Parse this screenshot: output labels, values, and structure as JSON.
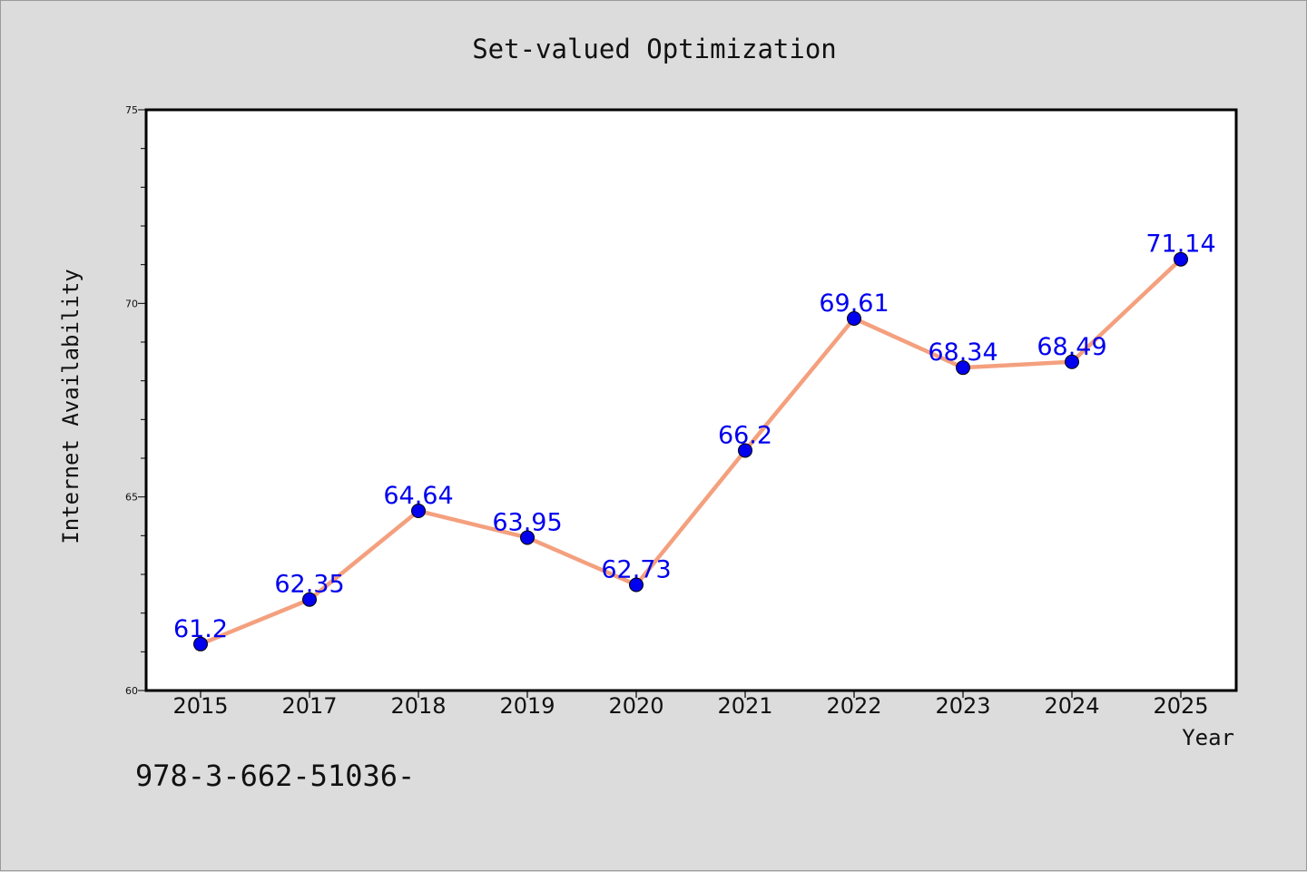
{
  "chart_data": {
    "type": "line",
    "title": "Set-valued Optimization",
    "xlabel": "Year",
    "ylabel": "Internet Availability",
    "categories": [
      "2015",
      "2017",
      "2018",
      "2019",
      "2020",
      "2021",
      "2022",
      "2023",
      "2024",
      "2025"
    ],
    "series": [
      {
        "values": [
          61.2,
          62.35,
          64.64,
          63.95,
          62.73,
          66.2,
          69.61,
          68.34,
          68.49,
          71.14
        ],
        "data_labels": [
          "61.2",
          "62.35",
          "64.64",
          "63.95",
          "62.73",
          "66.2",
          "69.61",
          "68.34",
          "68.49",
          "71.14"
        ],
        "line_color": "#f4a07e",
        "marker_color": "#0000ee"
      }
    ],
    "ylim": [
      60,
      75
    ],
    "yticks": [
      "60",
      "65",
      "70",
      "75"
    ],
    "grid": false,
    "data_label_color": "#0000ee"
  },
  "footer_text": "978-3-662-51036-"
}
